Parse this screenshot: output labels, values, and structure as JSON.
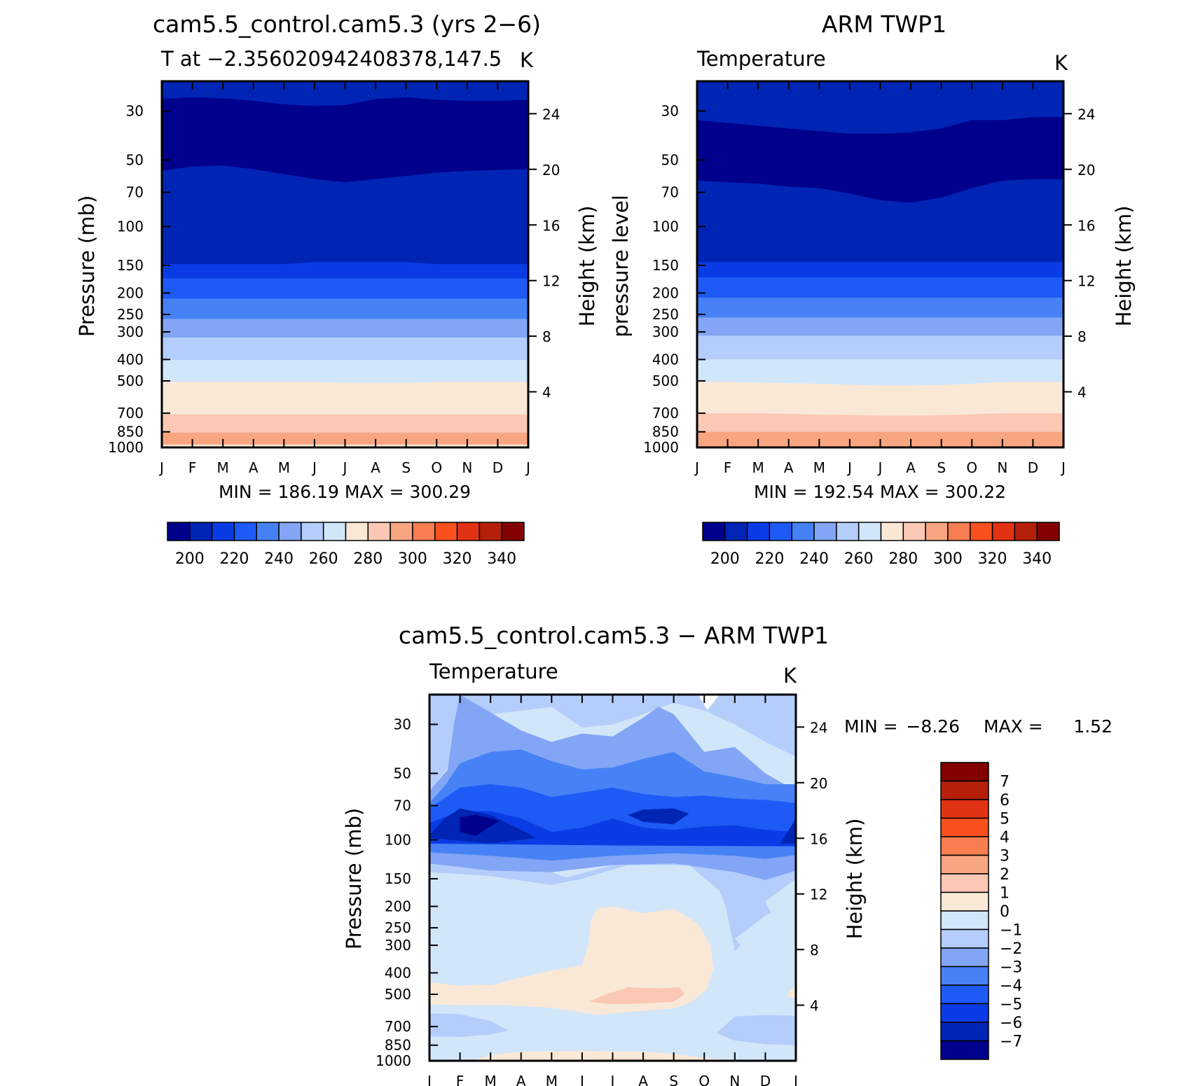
{
  "chart_data": [
    {
      "type": "heatmap",
      "title": "cam5.5_control.cam5.3 (yrs 2−6)",
      "subtitle": "T at −2.356020942408378,147.5",
      "units": "K",
      "ylabel": "Pressure (mb)",
      "ylabel_right": "Height (km)",
      "x_ticks": [
        "J",
        "F",
        "M",
        "A",
        "M",
        "J",
        "J",
        "A",
        "S",
        "O",
        "N",
        "D",
        "J"
      ],
      "y_ticks": [
        30,
        50,
        70,
        100,
        150,
        200,
        250,
        300,
        400,
        500,
        700,
        850,
        1000
      ],
      "y_scale": "log",
      "height_ticks": [
        24,
        20,
        16,
        12,
        8,
        4
      ],
      "stats": "MIN = 186.19 MAX = 300.29",
      "contour_min": 186.19,
      "contour_max": 300.29,
      "colorbar": {
        "levels": [
          195,
          200,
          205,
          210,
          215,
          220,
          225,
          230,
          235,
          240,
          245,
          250,
          255,
          260,
          265,
          270,
          275,
          280,
          285,
          290,
          295,
          300,
          305,
          310,
          315,
          320,
          325,
          330,
          335,
          340,
          345
        ],
        "labels": [
          "200",
          "220",
          "240",
          "260",
          "280",
          "300",
          "320",
          "340"
        ]
      }
    },
    {
      "type": "heatmap",
      "title": "ARM TWP1",
      "subtitle": "Temperature",
      "units": "K",
      "ylabel": "pressure level",
      "ylabel_right": "Height (km)",
      "x_ticks": [
        "J",
        "F",
        "M",
        "A",
        "M",
        "J",
        "J",
        "A",
        "S",
        "O",
        "N",
        "D",
        "J"
      ],
      "y_ticks": [
        30,
        50,
        70,
        100,
        150,
        200,
        250,
        300,
        400,
        500,
        700,
        850,
        1000
      ],
      "y_scale": "log",
      "height_ticks": [
        24,
        20,
        16,
        12,
        8,
        4
      ],
      "stats": "MIN = 192.54 MAX = 300.22",
      "contour_min": 192.54,
      "contour_max": 300.22,
      "colorbar": {
        "labels": [
          "200",
          "220",
          "240",
          "260",
          "280",
          "300",
          "320",
          "340"
        ]
      }
    },
    {
      "type": "heatmap",
      "title": "cam5.5_control.cam5.3 − ARM TWP1",
      "subtitle": "Temperature",
      "units": "K",
      "ylabel": "Pressure (mb)",
      "ylabel_right": "Height (km)",
      "x_ticks": [
        "J",
        "F",
        "M",
        "A",
        "M",
        "J",
        "J",
        "A",
        "S",
        "O",
        "N",
        "D",
        "J"
      ],
      "y_ticks": [
        30,
        50,
        70,
        100,
        150,
        200,
        250,
        300,
        400,
        500,
        700,
        850,
        1000
      ],
      "y_scale": "log",
      "height_ticks": [
        24,
        20,
        16,
        12,
        8,
        4
      ],
      "stats_min_label": "MIN =",
      "stats_min": "−8.26",
      "stats_max_label": "MAX =",
      "stats_max": "1.52",
      "contour_min": -8.26,
      "contour_max": 1.52,
      "colorbar": {
        "labels": [
          "7",
          "6",
          "5",
          "4",
          "3",
          "2",
          "1",
          "0",
          "−1",
          "−2",
          "−3",
          "−4",
          "−5",
          "−6",
          "−7"
        ]
      }
    }
  ],
  "colors": {
    "temp_palette": [
      "#00008c",
      "#0024b4",
      "#0a3ce6",
      "#1e5af5",
      "#4682f5",
      "#82a5f5",
      "#b4cdfa",
      "#d2e6fa",
      "#fae8d6",
      "#fac8b4",
      "#f8a582",
      "#f87d50",
      "#fa501e",
      "#e13214",
      "#b4200a",
      "#820000"
    ],
    "diff_palette": [
      "#820000",
      "#b4200a",
      "#e13214",
      "#fa501e",
      "#f87d50",
      "#f8a582",
      "#fac8b4",
      "#fae8d6",
      "#d2e6fa",
      "#b4cdfa",
      "#82a5f5",
      "#4682f5",
      "#1e5af5",
      "#0a3ce6",
      "#0024b4",
      "#00008c"
    ]
  }
}
